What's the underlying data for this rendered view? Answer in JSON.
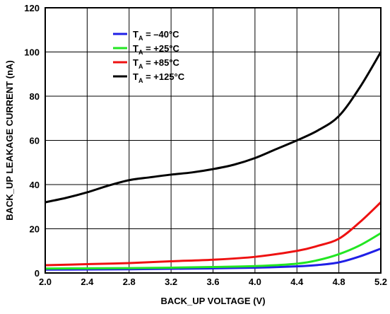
{
  "chart_data": {
    "type": "line",
    "xlabel": "BACK_UP VOLTAGE (V)",
    "ylabel": "BACK_UP LEAKAGE CURRENT (nA)",
    "xlim": [
      2.0,
      5.2
    ],
    "ylim": [
      0,
      120
    ],
    "x_ticks": [
      "2.0",
      "2.4",
      "2.8",
      "3.2",
      "3.6",
      "4.0",
      "4.4",
      "4.8",
      "5.2"
    ],
    "y_ticks": [
      "0",
      "20",
      "40",
      "60",
      "80",
      "100",
      "120"
    ],
    "grid": true,
    "legend_position": "top-left",
    "series": [
      {
        "name": "T_A = –40°C",
        "name_parts": [
          "T",
          "A",
          " = –40°C"
        ],
        "color": "#1f1fe6",
        "x": [
          2.0,
          2.4,
          2.8,
          3.2,
          3.6,
          4.0,
          4.4,
          4.6,
          4.8,
          5.0,
          5.2
        ],
        "y": [
          1.5,
          1.6,
          1.7,
          1.9,
          2.1,
          2.4,
          3.0,
          3.6,
          4.8,
          7.5,
          11
        ]
      },
      {
        "name": "T_A = +25°C",
        "name_parts": [
          "T",
          "A",
          " = +25°C"
        ],
        "color": "#22e622",
        "x": [
          2.0,
          2.4,
          2.8,
          3.2,
          3.6,
          4.0,
          4.4,
          4.6,
          4.8,
          5.0,
          5.2
        ],
        "y": [
          2.0,
          2.1,
          2.2,
          2.4,
          2.7,
          3.1,
          4.2,
          5.8,
          8.5,
          12.5,
          18
        ]
      },
      {
        "name": "T_A = +85°C",
        "name_parts": [
          "T",
          "A",
          " = +85°C"
        ],
        "color": "#ee1111",
        "x": [
          2.0,
          2.4,
          2.8,
          3.2,
          3.6,
          4.0,
          4.4,
          4.6,
          4.8,
          5.0,
          5.2
        ],
        "y": [
          3.5,
          4.0,
          4.5,
          5.3,
          6.0,
          7.3,
          10.0,
          12.3,
          15.5,
          23,
          32
        ]
      },
      {
        "name": "T_A = +125°C",
        "name_parts": [
          "T",
          "A",
          " = +125°C"
        ],
        "color": "#000000",
        "x": [
          2.0,
          2.2,
          2.4,
          2.6,
          2.8,
          3.0,
          3.2,
          3.4,
          3.6,
          3.8,
          4.0,
          4.2,
          4.4,
          4.6,
          4.8,
          5.0,
          5.2
        ],
        "y": [
          32,
          34,
          36.5,
          39.5,
          42,
          43.3,
          44.5,
          45.5,
          47,
          49,
          52,
          56,
          60,
          64.5,
          71,
          84,
          100
        ]
      }
    ]
  }
}
